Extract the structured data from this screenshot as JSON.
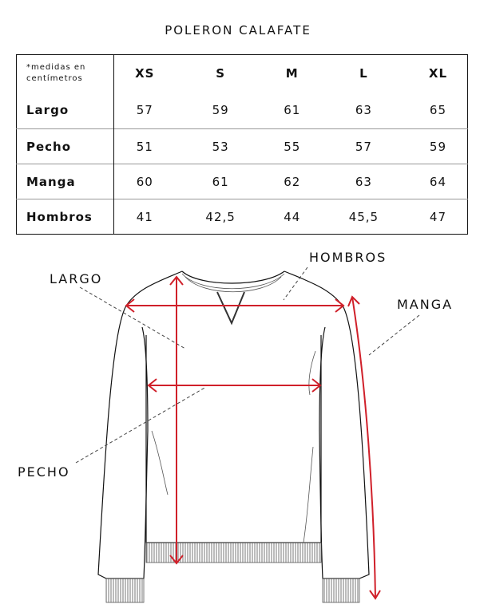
{
  "title": "POLERON CALAFATE",
  "table": {
    "note": "*medidas en centímetros",
    "sizes": [
      "XS",
      "S",
      "M",
      "L",
      "XL"
    ],
    "rows": [
      {
        "label": "Largo",
        "values": [
          "57",
          "59",
          "61",
          "63",
          "65"
        ]
      },
      {
        "label": "Pecho",
        "values": [
          "51",
          "53",
          "55",
          "57",
          "59"
        ]
      },
      {
        "label": "Manga",
        "values": [
          "60",
          "61",
          "62",
          "63",
          "64"
        ]
      },
      {
        "label": "Hombros",
        "values": [
          "41",
          "42,5",
          "44",
          "45,5",
          "47"
        ]
      }
    ]
  },
  "diagram": {
    "labels": {
      "largo": "LARGO",
      "hombros": "HOMBROS",
      "manga": "MANGA",
      "pecho": "PECHO"
    },
    "arrow_color": "#d0202a"
  }
}
